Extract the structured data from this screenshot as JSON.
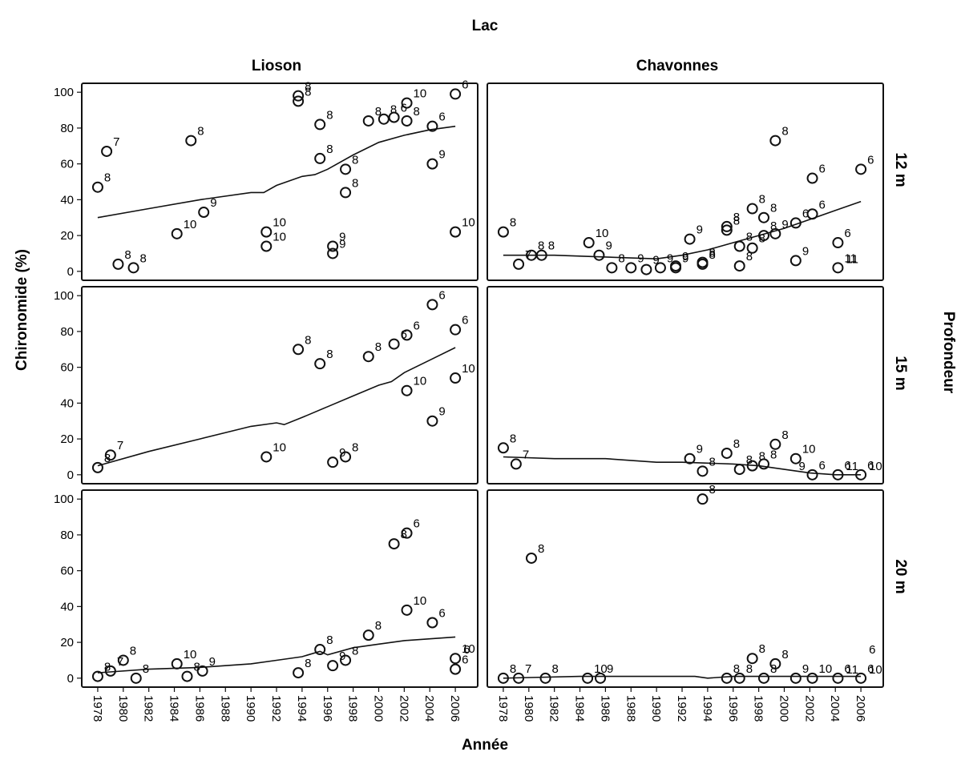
{
  "chart_data": {
    "type": "scatter",
    "title": "Lac",
    "xlabel": "Année",
    "ylabel": "Chironomide (%)",
    "right_label": "Profondeur",
    "columns": [
      "Lioson",
      "Chavonnes"
    ],
    "rows": [
      "12 m",
      "15 m",
      "20 m"
    ],
    "x_ticks": [
      1978,
      1980,
      1982,
      1984,
      1986,
      1988,
      1990,
      1992,
      1994,
      1996,
      1998,
      2000,
      2002,
      2004,
      2006
    ],
    "y_ticks": [
      0,
      20,
      40,
      60,
      80,
      100
    ],
    "xlim": [
      1977,
      2007.5
    ],
    "ylim": [
      -5,
      105
    ],
    "markers": "open circles with a sampling label beside each point, LOESS trend line per panel",
    "panels": [
      {
        "lake": "Lioson",
        "depth": "12 m",
        "points": [
          {
            "x": 1978,
            "y": 47,
            "label": "8"
          },
          {
            "x": 1978.7,
            "y": 67,
            "label": "7"
          },
          {
            "x": 1979.6,
            "y": 4,
            "label": "8"
          },
          {
            "x": 1980.8,
            "y": 2,
            "label": "8"
          },
          {
            "x": 1984.2,
            "y": 21,
            "label": "10"
          },
          {
            "x": 1985.3,
            "y": 73,
            "label": "8"
          },
          {
            "x": 1986.3,
            "y": 33,
            "label": "9"
          },
          {
            "x": 1991.2,
            "y": 22,
            "label": "10"
          },
          {
            "x": 1991.2,
            "y": 14,
            "label": "10"
          },
          {
            "x": 1993.7,
            "y": 98,
            "label": "8"
          },
          {
            "x": 1993.7,
            "y": 95,
            "label": "8"
          },
          {
            "x": 1995.4,
            "y": 82,
            "label": "8"
          },
          {
            "x": 1995.4,
            "y": 63,
            "label": "8"
          },
          {
            "x": 1996.4,
            "y": 14,
            "label": "9"
          },
          {
            "x": 1996.4,
            "y": 10,
            "label": "9"
          },
          {
            "x": 1997.4,
            "y": 57,
            "label": "8"
          },
          {
            "x": 1997.4,
            "y": 44,
            "label": "8"
          },
          {
            "x": 1999.2,
            "y": 84,
            "label": "8"
          },
          {
            "x": 2000.4,
            "y": 85,
            "label": "8"
          },
          {
            "x": 2001.2,
            "y": 86,
            "label": "6"
          },
          {
            "x": 2002.2,
            "y": 94,
            "label": "10"
          },
          {
            "x": 2002.2,
            "y": 84,
            "label": "8"
          },
          {
            "x": 2004.2,
            "y": 81,
            "label": "6"
          },
          {
            "x": 2004.2,
            "y": 60,
            "label": "9"
          },
          {
            "x": 2006,
            "y": 99,
            "label": "6"
          },
          {
            "x": 2006,
            "y": 22,
            "label": "10"
          }
        ],
        "trend": [
          [
            1978,
            30
          ],
          [
            1982,
            35
          ],
          [
            1986,
            40
          ],
          [
            1990,
            44
          ],
          [
            1991,
            44
          ],
          [
            1992,
            48
          ],
          [
            1994,
            53
          ],
          [
            1995,
            54
          ],
          [
            1996,
            57
          ],
          [
            1998,
            65
          ],
          [
            2000,
            72
          ],
          [
            2002,
            76
          ],
          [
            2004,
            79
          ],
          [
            2006,
            81
          ]
        ]
      },
      {
        "lake": "Chavonnes",
        "depth": "12 m",
        "points": [
          {
            "x": 1978,
            "y": 22,
            "label": "8"
          },
          {
            "x": 1979.2,
            "y": 4,
            "label": "7"
          },
          {
            "x": 1980.2,
            "y": 9,
            "label": "8"
          },
          {
            "x": 1981,
            "y": 9,
            "label": "8"
          },
          {
            "x": 1984.7,
            "y": 16,
            "label": "10"
          },
          {
            "x": 1985.5,
            "y": 9,
            "label": "9"
          },
          {
            "x": 1986.5,
            "y": 2,
            "label": "8"
          },
          {
            "x": 1988,
            "y": 2,
            "label": "9"
          },
          {
            "x": 1989.2,
            "y": 1,
            "label": "9"
          },
          {
            "x": 1990.3,
            "y": 2,
            "label": "9"
          },
          {
            "x": 1991.5,
            "y": 3,
            "label": "9"
          },
          {
            "x": 1991.5,
            "y": 2,
            "label": "9"
          },
          {
            "x": 1992.6,
            "y": 18,
            "label": "9"
          },
          {
            "x": 1993.6,
            "y": 5,
            "label": "8"
          },
          {
            "x": 1993.6,
            "y": 4,
            "label": "8"
          },
          {
            "x": 1995.5,
            "y": 25,
            "label": "8"
          },
          {
            "x": 1995.5,
            "y": 23,
            "label": "8"
          },
          {
            "x": 1996.5,
            "y": 14,
            "label": "8"
          },
          {
            "x": 1996.5,
            "y": 3,
            "label": "8"
          },
          {
            "x": 1997.5,
            "y": 35,
            "label": "8"
          },
          {
            "x": 1997.5,
            "y": 13,
            "label": "8"
          },
          {
            "x": 1998.4,
            "y": 30,
            "label": "8"
          },
          {
            "x": 1998.4,
            "y": 20,
            "label": "8"
          },
          {
            "x": 1999.3,
            "y": 73,
            "label": "8"
          },
          {
            "x": 1999.3,
            "y": 21,
            "label": "9"
          },
          {
            "x": 2000.9,
            "y": 27,
            "label": "6"
          },
          {
            "x": 2000.9,
            "y": 6,
            "label": "9"
          },
          {
            "x": 2002.2,
            "y": 52,
            "label": "6"
          },
          {
            "x": 2002.2,
            "y": 32,
            "label": "6"
          },
          {
            "x": 2004.2,
            "y": 16,
            "label": "6"
          },
          {
            "x": 2004.2,
            "y": 2,
            "label": "11"
          },
          {
            "x": 2006,
            "y": 57,
            "label": "6"
          }
        ],
        "trend": [
          [
            1978,
            9
          ],
          [
            1982,
            9
          ],
          [
            1986,
            8
          ],
          [
            1990,
            7
          ],
          [
            1992,
            9
          ],
          [
            1994,
            12
          ],
          [
            1996,
            16
          ],
          [
            1998,
            20
          ],
          [
            2000,
            24
          ],
          [
            2002,
            29
          ],
          [
            2004,
            34
          ],
          [
            2006,
            39
          ]
        ]
      },
      {
        "lake": "Lioson",
        "depth": "15 m",
        "points": [
          {
            "x": 1978,
            "y": 4,
            "label": "8"
          },
          {
            "x": 1979,
            "y": 11,
            "label": "7"
          },
          {
            "x": 1991.2,
            "y": 10,
            "label": "10"
          },
          {
            "x": 1993.7,
            "y": 70,
            "label": "8"
          },
          {
            "x": 1995.4,
            "y": 62,
            "label": "8"
          },
          {
            "x": 1996.4,
            "y": 7,
            "label": "9"
          },
          {
            "x": 1997.4,
            "y": 10,
            "label": "8"
          },
          {
            "x": 1999.2,
            "y": 66,
            "label": "8"
          },
          {
            "x": 2001.2,
            "y": 73,
            "label": "6"
          },
          {
            "x": 2002.2,
            "y": 78,
            "label": "6"
          },
          {
            "x": 2002.2,
            "y": 47,
            "label": "10"
          },
          {
            "x": 2004.2,
            "y": 95,
            "label": "6"
          },
          {
            "x": 2004.2,
            "y": 30,
            "label": "9"
          },
          {
            "x": 2006,
            "y": 81,
            "label": "6"
          },
          {
            "x": 2006,
            "y": 54,
            "label": "10"
          }
        ],
        "trend": [
          [
            1978,
            5
          ],
          [
            1982,
            13
          ],
          [
            1986,
            20
          ],
          [
            1990,
            27
          ],
          [
            1992,
            29
          ],
          [
            1992.6,
            28
          ],
          [
            1994,
            32
          ],
          [
            1996,
            38
          ],
          [
            1998,
            44
          ],
          [
            2000,
            50
          ],
          [
            2001,
            52
          ],
          [
            2002,
            57
          ],
          [
            2004,
            64
          ],
          [
            2006,
            71
          ]
        ]
      },
      {
        "lake": "Chavonnes",
        "depth": "15 m",
        "points": [
          {
            "x": 1978,
            "y": 15,
            "label": "8"
          },
          {
            "x": 1979,
            "y": 6,
            "label": "7"
          },
          {
            "x": 1992.6,
            "y": 9,
            "label": "9"
          },
          {
            "x": 1993.6,
            "y": 2,
            "label": "8"
          },
          {
            "x": 1995.5,
            "y": 12,
            "label": "8"
          },
          {
            "x": 1996.5,
            "y": 3,
            "label": "8"
          },
          {
            "x": 1997.5,
            "y": 5,
            "label": "8"
          },
          {
            "x": 1998.4,
            "y": 6,
            "label": "8"
          },
          {
            "x": 1999.3,
            "y": 17,
            "label": "8"
          },
          {
            "x": 2000.9,
            "y": 9,
            "label": "10"
          },
          {
            "x": 2002.2,
            "y": 0,
            "label": "6"
          },
          {
            "x": 2004.2,
            "y": 0,
            "label": "6"
          },
          {
            "x": 2006,
            "y": 0,
            "label": "6"
          }
        ],
        "trend": [
          [
            1978,
            10
          ],
          [
            1982,
            9
          ],
          [
            1986,
            9
          ],
          [
            1990,
            7
          ],
          [
            1992,
            7
          ],
          [
            1996,
            6
          ],
          [
            1998,
            5
          ],
          [
            2000,
            3
          ],
          [
            2002,
            1
          ],
          [
            2004,
            0
          ],
          [
            2006,
            0
          ]
        ]
      },
      {
        "lake": "Lioson",
        "depth": "20 m",
        "points": [
          {
            "x": 1978,
            "y": 1,
            "label": "8"
          },
          {
            "x": 1979,
            "y": 4,
            "label": "7"
          },
          {
            "x": 1980,
            "y": 10,
            "label": "8"
          },
          {
            "x": 1981,
            "y": 0,
            "label": "8"
          },
          {
            "x": 1984.2,
            "y": 8,
            "label": "10"
          },
          {
            "x": 1985,
            "y": 1,
            "label": "8"
          },
          {
            "x": 1986.2,
            "y": 4,
            "label": "9"
          },
          {
            "x": 1993.7,
            "y": 3,
            "label": "8"
          },
          {
            "x": 1995.4,
            "y": 16,
            "label": "8"
          },
          {
            "x": 1996.4,
            "y": 7,
            "label": "9"
          },
          {
            "x": 1997.4,
            "y": 10,
            "label": "8"
          },
          {
            "x": 1999.2,
            "y": 24,
            "label": "8"
          },
          {
            "x": 2001.2,
            "y": 75,
            "label": "8"
          },
          {
            "x": 2002.2,
            "y": 81,
            "label": "6"
          },
          {
            "x": 2002.2,
            "y": 38,
            "label": "10"
          },
          {
            "x": 2004.2,
            "y": 31,
            "label": "6"
          },
          {
            "x": 2006,
            "y": 11,
            "label": "10"
          },
          {
            "x": 2006,
            "y": 5,
            "label": "6"
          }
        ],
        "trend": [
          [
            1978,
            3
          ],
          [
            1982,
            5
          ],
          [
            1986,
            6
          ],
          [
            1990,
            8
          ],
          [
            1992,
            10
          ],
          [
            1994,
            12
          ],
          [
            1995.4,
            15
          ],
          [
            1996,
            13
          ],
          [
            1998,
            17
          ],
          [
            2000,
            19
          ],
          [
            2002,
            21
          ],
          [
            2006,
            23
          ]
        ]
      },
      {
        "lake": "Chavonnes",
        "depth": "20 m",
        "points": [
          {
            "x": 1978,
            "y": 0,
            "label": "8"
          },
          {
            "x": 1979.2,
            "y": 0,
            "label": "7"
          },
          {
            "x": 1980.2,
            "y": 67,
            "label": "8"
          },
          {
            "x": 1981.3,
            "y": 0,
            "label": "8"
          },
          {
            "x": 1984.6,
            "y": 0,
            "label": "10"
          },
          {
            "x": 1985.6,
            "y": 0,
            "label": "9"
          },
          {
            "x": 1993.6,
            "y": 100,
            "label": "8"
          },
          {
            "x": 1995.5,
            "y": 0,
            "label": "8"
          },
          {
            "x": 1996.5,
            "y": 0,
            "label": "8"
          },
          {
            "x": 1997.5,
            "y": 11,
            "label": "8"
          },
          {
            "x": 1998.4,
            "y": 0,
            "label": "8"
          },
          {
            "x": 1999.3,
            "y": 8,
            "label": "8"
          },
          {
            "x": 2000.9,
            "y": 0,
            "label": "9"
          },
          {
            "x": 2002.2,
            "y": 0,
            "label": "10"
          },
          {
            "x": 2004.2,
            "y": 0,
            "label": "6"
          },
          {
            "x": 2006,
            "y": 0,
            "label": "6"
          }
        ],
        "trend": [
          [
            1978,
            0
          ],
          [
            1984,
            1
          ],
          [
            1990,
            1
          ],
          [
            1992,
            1
          ],
          [
            1993,
            1
          ],
          [
            1994,
            0
          ],
          [
            1996,
            1
          ],
          [
            2000,
            1
          ],
          [
            2006,
            1
          ]
        ]
      }
    ],
    "extra_labels": [
      {
        "panel": 1,
        "x": 2004.2,
        "y": 2,
        "label": "11"
      },
      {
        "panel": 3,
        "x": 2006,
        "y": 0,
        "label": "10"
      },
      {
        "panel": 3,
        "x": 2004.2,
        "y": 0,
        "label": "11"
      },
      {
        "panel": 3,
        "x": 2000.5,
        "y": 0,
        "label": "9"
      },
      {
        "panel": 4,
        "x": 2006,
        "y": 11,
        "label": "6"
      },
      {
        "panel": 5,
        "x": 2006,
        "y": 11,
        "label": "6"
      },
      {
        "panel": 5,
        "x": 2004.2,
        "y": 0,
        "label": "11"
      },
      {
        "panel": 5,
        "x": 2006,
        "y": 0,
        "label": "10"
      }
    ]
  }
}
